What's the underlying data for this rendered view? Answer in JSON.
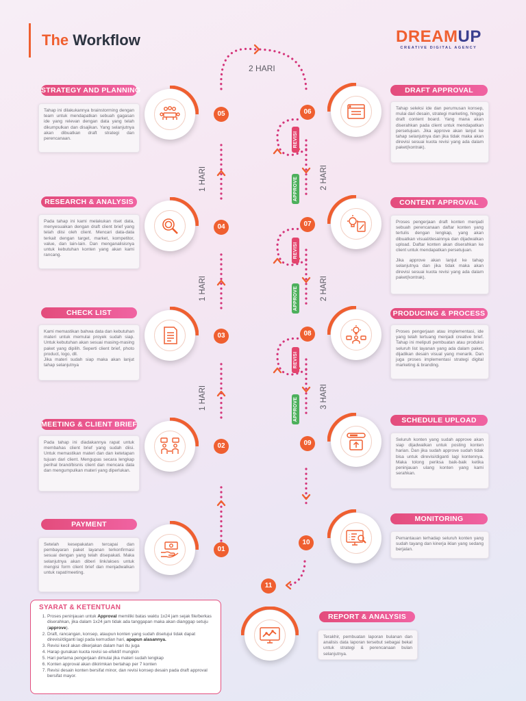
{
  "header": {
    "title_prefix": "The",
    "title_main": "Workflow"
  },
  "logo": {
    "brand_a": "DREAM",
    "brand_b": "UP",
    "tagline": "CREATIVE DIGITAL AGENCY"
  },
  "colors": {
    "accent": "#ef5f30",
    "pill": "#e34c7c",
    "approve": "#4db05c",
    "revisi": "#e3456d",
    "brand_blue": "#3b3f8f"
  },
  "steps": {
    "s01": {
      "num": "01",
      "title": "PAYMENT",
      "icon": "money-hand-icon",
      "desc": "Setelah kesepakatan tercapai dan pembayaran paket layanan terkonfirmasi sesuai dengan yang telah disepakati. Maka selanjutnya akan diberi link/akses untuk mengisi form client brief dan menjadwalkan untuk rapat/meeting."
    },
    "s02": {
      "num": "02",
      "title": "MEETING & CLIENT BRIEF",
      "icon": "meeting-icon",
      "desc": "Pada tahap ini diadakannya rapat untuk membahas client brief yang sudah diisi. Untuk memastikan materi dan dan ketetapan tujuan dari client. Mengupas secara lengkap perihal brand/bisnis client dan mencara data dan mengumpulkan materi yang diperlukan."
    },
    "s03": {
      "num": "03",
      "title": "CHECK LIST",
      "icon": "checklist-icon",
      "desc1": "Kami memastikan bahwa data dan kebutuhan materi untuk memulai proyek sudah siap. Untuk kebutuhan akan sesuai masing-masing paket yang dipilih. Seperti client brief, photo product, logo, dll.",
      "desc2": "Jika materi sudah siap maka akan lanjut tahap selanjutnya"
    },
    "s04": {
      "num": "04",
      "title": "RESEARCH & ANALYSIS",
      "icon": "magnifier-icon",
      "desc": "Pada tahap ini kami melakukan riset data, menyesuaikan dengan draft client brief yang telah diisi oleh client. Mencari data-data terkait dengan target, market, kompetitor, value, dan lain-lain. Dan menganalisisnya untuk kebutuhan konten yang akan kami rancang."
    },
    "s05": {
      "num": "05",
      "title": "STRATEGY AND PLANNING",
      "icon": "team-table-icon",
      "desc": "Tahap ini dilakukannya brainstorming dengan team untuk mendapatkan sebuah gagasan ide yang relevan dengan data yang telah dikumpulkan dan disajikan. Yang selanjutnya akan dibuatkan draft strategi dan perencanaan."
    },
    "s06": {
      "num": "06",
      "title": "DRAFT APPROVAL",
      "icon": "browser-window-icon",
      "desc": "Tahap seleksi ide dan perumusan konsep, mulai dari desain, strategi marketing, hingga draft content board. Yang mana akan diserahkan pada client untuk mendapatkan persetujuan. Jika approve akan lanjut ke tahap selanjutnya dan jika tidak maka akan direvisi sesuai kuota revisi yang ada dalam paket(kontrak)."
    },
    "s07": {
      "num": "07",
      "title": "CONTENT APPROVAL",
      "icon": "idea-pencil-icon",
      "desc1": "Proses pengerjaan draft konten menjadi sebuah perencanaan daftar konten yang tertulis dengan lengkap, yang akan dibuatkan visual/desainnya dan dijadwalkan upload. Daftar konten akan diserahkan ke client untuk mendapatkan persetujuan.",
      "desc2": "Jika approve akan lanjut ke tahap selanjutnya dan jika tidak maka akan direvisi sesuai kuota revisi yang ada dalam paket(kontrak)."
    },
    "s08": {
      "num": "08",
      "title": "PRODUCING & PROCESS",
      "icon": "creative-person-icon",
      "desc": "Proses pengerjaan atau implementasi, ide yang telah tertuang menjadi creative brief. Tahap ini meliputi pembuatan atau produksi seluruh list layanan yang ada dalam paket, dijadikan desain visual yang menarik. Dan juga proses implementasi strategi digital marketing & branding."
    },
    "s09": {
      "num": "09",
      "title": "SCHEDULE UPLOAD",
      "icon": "upload-icon",
      "desc": "Seluruh konten yang sudah approve akan siap dijadwalkan untuk posting konten harian. Dan jika sudah approve sudah tidak bisa untuk direvisi/diganti lagi kontennya. Maka tolong periksa baik-baik ketika peninjauan ulang konten yang kami serahkan."
    },
    "s10": {
      "num": "10",
      "title": "MONITORING",
      "icon": "monitor-analytics-icon",
      "desc": "Pemantauan terhadap seluruh konten yang sudah tayang dan kinerja iklan yang sedang berjalan."
    },
    "s11": {
      "num": "11",
      "title": "REPORT & ANALYSIS",
      "icon": "report-chart-icon",
      "desc": "Terakhir, pembuatan laporan bulanan dan analisis data laporan tersebut sebagai bekal untuk strategi & perencanaan bulan selanjutnya."
    }
  },
  "connectors": {
    "top": "2 HARI",
    "l1": "1 HARI",
    "l2": "1 HARI",
    "l3": "1 HARI",
    "r1": "2 HARI",
    "r2": "2 HARI",
    "r3": "3 HARI",
    "revisi": "REVISI",
    "approve": "APPROVE"
  },
  "terms": {
    "title": "SYARAT & KETENTUAN",
    "t1a": "Proses peninjauan untuk ",
    "t1b": "Approval",
    "t1c": " memiliki batas waktu 1x24 jam sejak file/berkas diserahkan, jika dalam 1x24 jam tidak ada tanggapan maka akan dianggap setuju (",
    "t1d": "approve",
    "t1e": ").",
    "t2a": "Draft, rancangan, konsep, ataupun konten yang sudah disetujui tidak dapat direvisi/diganti lagi pada kemudian hari, ",
    "t2b": "apapun alasannya.",
    "t3": "Revisi kecil akan dikerjakan dalam hari itu juga",
    "t4": "Harap gunakan kuota revisi se-efektif mungkin",
    "t5": "Hari pertama pengerjaan dimulai jika materi sudah lengkap",
    "t6": "Konten approval akan dikirimkan bertahap per 7 konten",
    "t7": "Revisi desain konten bersifat minor, dan revisi konsep desain pada draft approval bersifat mayor."
  }
}
